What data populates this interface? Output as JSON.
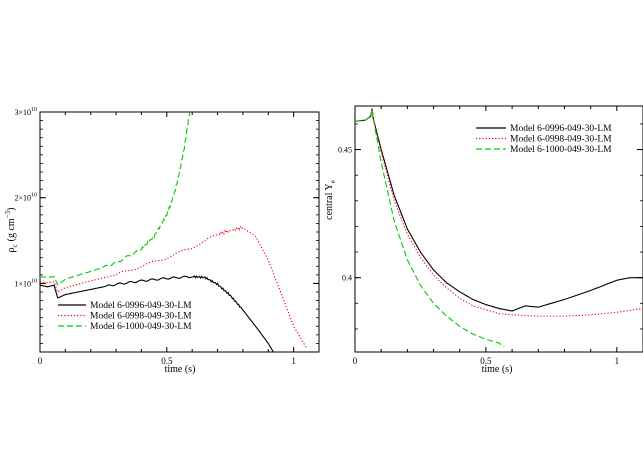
{
  "chart_data": [
    {
      "type": "line",
      "xlabel": "time (s)",
      "ylabel": "ρc (g cm⁻³)",
      "ylabel_main": "ρ",
      "ylabel_sub": "c",
      "ylabel_units": "(g cm",
      "ylabel_units_sup": "−3",
      "ylabel_units_close": ")",
      "xlim": [
        0,
        1.1
      ],
      "ylim": [
        2000000000.0,
        30000000000.0
      ],
      "xticks": [
        {
          "value": 0,
          "label": "0"
        },
        {
          "value": 0.5,
          "label": "0.5"
        },
        {
          "value": 1,
          "label": "1"
        }
      ],
      "yticks": [
        {
          "value": 10000000000.0,
          "base": "1×10",
          "exp": "10"
        },
        {
          "value": 20000000000.0,
          "base": "2×10",
          "exp": "10"
        },
        {
          "value": 30000000000.0,
          "base": "3×10",
          "exp": "10"
        }
      ],
      "legend_position": "bottom-left",
      "series": [
        {
          "name": "Model 6-0996-049-30-LM",
          "color": "#000000",
          "dash": "solid",
          "x": [
            0,
            0.03,
            0.055,
            0.07,
            0.1,
            0.2,
            0.3,
            0.4,
            0.5,
            0.6,
            0.65,
            0.7,
            0.75,
            0.8,
            0.85,
            0.9,
            0.92
          ],
          "y": [
            9800000000.0,
            9600000000.0,
            9800000000.0,
            8300000000.0,
            8700000000.0,
            9300000000.0,
            9900000000.0,
            10300000000.0,
            10600000000.0,
            10800000000.0,
            10700000000.0,
            9900000000.0,
            8600000000.0,
            6900000000.0,
            5000000000.0,
            3000000000.0,
            2000000000.0
          ]
        },
        {
          "name": "Model 6-0998-049-30-LM",
          "color": "#e8000b",
          "dash": "dotted",
          "x": [
            0,
            0.03,
            0.055,
            0.07,
            0.1,
            0.2,
            0.3,
            0.4,
            0.5,
            0.6,
            0.7,
            0.75,
            0.8,
            0.85,
            0.9,
            0.95,
            1.0,
            1.05
          ],
          "y": [
            10200000000.0,
            10100000000.0,
            10200000000.0,
            9000000000.0,
            9500000000.0,
            10300000000.0,
            11000000000.0,
            12000000000.0,
            13000000000.0,
            14200000000.0,
            15700000000.0,
            16200000000.0,
            16500000000.0,
            15500000000.0,
            12700000000.0,
            8900000000.0,
            5000000000.0,
            2500000000.0
          ]
        },
        {
          "name": "Model 6-1000-049-30-LM",
          "color": "#00cc00",
          "dash": "dashed",
          "x": [
            0,
            0.03,
            0.055,
            0.07,
            0.1,
            0.2,
            0.3,
            0.4,
            0.45,
            0.5,
            0.53,
            0.55,
            0.57,
            0.58,
            0.59
          ],
          "y": [
            10800000000.0,
            10700000000.0,
            10800000000.0,
            9800000000.0,
            10500000000.0,
            11400000000.0,
            12400000000.0,
            14000000000.0,
            15500000000.0,
            18000000000.0,
            20500000000.0,
            23000000000.0,
            26000000000.0,
            28000000000.0,
            30000000000.0
          ]
        }
      ]
    },
    {
      "type": "line",
      "xlabel": "time (s)",
      "ylabel_main": "central Y",
      "ylabel_sub": "e",
      "xlim": [
        0,
        1.1
      ],
      "ylim": [
        0.371,
        0.467
      ],
      "xticks": [
        {
          "value": 0,
          "label": "0"
        },
        {
          "value": 0.5,
          "label": "0.5"
        },
        {
          "value": 1,
          "label": "1"
        }
      ],
      "yticks": [
        {
          "value": 0.4,
          "label": "0.4"
        },
        {
          "value": 0.45,
          "label": "0.45"
        }
      ],
      "legend_position": "top-right",
      "series": [
        {
          "name": "Model 6-0996-049-30-LM",
          "color": "#000000",
          "dash": "solid",
          "x": [
            0,
            0.04,
            0.06,
            0.065,
            0.07,
            0.1,
            0.15,
            0.2,
            0.25,
            0.3,
            0.35,
            0.4,
            0.45,
            0.5,
            0.55,
            0.6,
            0.65,
            0.7,
            0.8,
            0.9,
            1.0,
            1.05,
            1.1
          ],
          "y": [
            0.461,
            0.4615,
            0.463,
            0.466,
            0.462,
            0.45,
            0.432,
            0.419,
            0.41,
            0.403,
            0.398,
            0.3945,
            0.3915,
            0.3895,
            0.388,
            0.387,
            0.389,
            0.3885,
            0.3915,
            0.395,
            0.399,
            0.4,
            0.4
          ]
        },
        {
          "name": "Model 6-0998-049-30-LM",
          "color": "#e8000b",
          "dash": "dotted",
          "x": [
            0,
            0.04,
            0.06,
            0.065,
            0.07,
            0.1,
            0.15,
            0.2,
            0.25,
            0.3,
            0.35,
            0.4,
            0.45,
            0.5,
            0.55,
            0.6,
            0.7,
            0.8,
            0.9,
            1.0,
            1.1
          ],
          "y": [
            0.461,
            0.4615,
            0.463,
            0.466,
            0.462,
            0.449,
            0.43,
            0.417,
            0.408,
            0.401,
            0.396,
            0.392,
            0.389,
            0.3875,
            0.386,
            0.3855,
            0.385,
            0.385,
            0.3855,
            0.3865,
            0.388
          ]
        },
        {
          "name": "Model 6-1000-049-30-LM",
          "color": "#00cc00",
          "dash": "dashed",
          "x": [
            0,
            0.04,
            0.06,
            0.065,
            0.07,
            0.1,
            0.15,
            0.2,
            0.25,
            0.3,
            0.35,
            0.4,
            0.45,
            0.5,
            0.55,
            0.57
          ],
          "y": [
            0.461,
            0.4615,
            0.463,
            0.466,
            0.462,
            0.445,
            0.422,
            0.407,
            0.397,
            0.39,
            0.385,
            0.381,
            0.378,
            0.376,
            0.3745,
            0.373
          ]
        }
      ]
    }
  ]
}
